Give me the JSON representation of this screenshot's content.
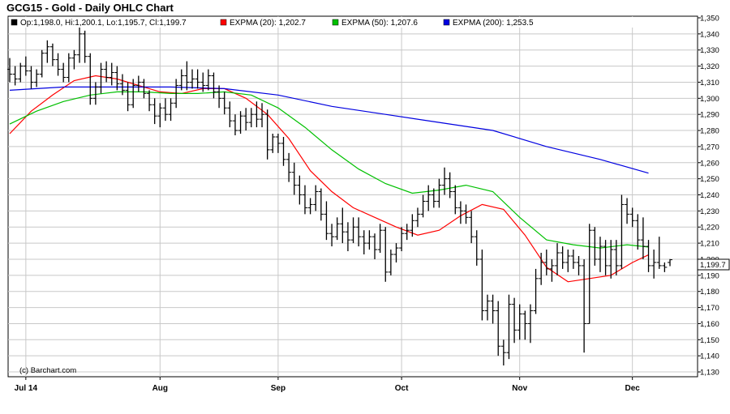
{
  "title": "GCG15 - Gold - Daily OHLC Chart",
  "legend": {
    "ohlc": "Op:1,198.0, Hi:1,200.1, Lo:1,195.7, Cl:1,199.7",
    "ema20": "EXPMA (20): 1,202.7",
    "ema50": "EXPMA (50): 1,207.6",
    "ema200": "EXPMA (200): 1,253.5"
  },
  "credit": "(c) Barchart.com",
  "last_price_label": "1,199.7",
  "colors": {
    "ohlc": "#000000",
    "ema20": "#ff0000",
    "ema50": "#00c000",
    "ema200": "#0000e0",
    "grid": "#c8c8c8",
    "frame": "#000000",
    "legend_bg": "#ffffff"
  },
  "chart_data": {
    "type": "ohlc",
    "title": "GCG15 - Gold - Daily OHLC Chart",
    "x_labels": [
      "Jul 14",
      "Aug",
      "Sep",
      "Oct",
      "Nov",
      "Dec"
    ],
    "y_ticks": [
      1130,
      1140,
      1150,
      1160,
      1170,
      1180,
      1190,
      1200,
      1210,
      1220,
      1230,
      1240,
      1250,
      1260,
      1270,
      1280,
      1290,
      1300,
      1310,
      1320,
      1330,
      1340,
      1350
    ],
    "y_tick_labels": [
      "1,130",
      "1,140",
      "1,150",
      "1,160",
      "1,170",
      "1,180",
      "1,190",
      "1,200",
      "1,210",
      "1,220",
      "1,230",
      "1,240",
      "1,250",
      "1,260",
      "1,270",
      "1,280",
      "1,290",
      "1,300",
      "1,310",
      "1,320",
      "1,330",
      "1,340",
      "1,350"
    ],
    "ylim": [
      1127,
      1351
    ],
    "grid": true,
    "legend_position": "top",
    "series": [
      {
        "name": "GCG15 OHLC",
        "type": "ohlc",
        "values": [
          [
            1318,
            1325,
            1310,
            1315
          ],
          [
            1315,
            1320,
            1308,
            1312
          ],
          [
            1312,
            1322,
            1310,
            1320
          ],
          [
            1320,
            1326,
            1314,
            1317
          ],
          [
            1317,
            1320,
            1306,
            1310
          ],
          [
            1310,
            1318,
            1307,
            1315
          ],
          [
            1315,
            1330,
            1313,
            1328
          ],
          [
            1328,
            1336,
            1322,
            1332
          ],
          [
            1332,
            1334,
            1320,
            1324
          ],
          [
            1324,
            1328,
            1314,
            1318
          ],
          [
            1318,
            1322,
            1310,
            1313
          ],
          [
            1313,
            1328,
            1310,
            1325
          ],
          [
            1325,
            1330,
            1318,
            1327
          ],
          [
            1327,
            1345,
            1322,
            1340
          ],
          [
            1340,
            1342,
            1322,
            1326
          ],
          [
            1326,
            1328,
            1296,
            1300
          ],
          [
            1300,
            1310,
            1296,
            1307
          ],
          [
            1307,
            1322,
            1303,
            1318
          ],
          [
            1318,
            1323,
            1310,
            1313
          ],
          [
            1313,
            1322,
            1308,
            1316
          ],
          [
            1316,
            1320,
            1305,
            1309
          ],
          [
            1309,
            1315,
            1302,
            1305
          ],
          [
            1305,
            1310,
            1292,
            1296
          ],
          [
            1296,
            1312,
            1294,
            1308
          ],
          [
            1308,
            1314,
            1304,
            1310
          ],
          [
            1310,
            1312,
            1300,
            1303
          ],
          [
            1303,
            1305,
            1292,
            1296
          ],
          [
            1296,
            1300,
            1284,
            1289
          ],
          [
            1289,
            1297,
            1282,
            1294
          ],
          [
            1294,
            1300,
            1286,
            1290
          ],
          [
            1290,
            1300,
            1286,
            1297
          ],
          [
            1297,
            1312,
            1294,
            1308
          ],
          [
            1308,
            1318,
            1305,
            1314
          ],
          [
            1314,
            1323,
            1305,
            1310
          ],
          [
            1310,
            1318,
            1306,
            1312
          ],
          [
            1312,
            1318,
            1306,
            1310
          ],
          [
            1310,
            1316,
            1304,
            1308
          ],
          [
            1308,
            1318,
            1305,
            1314
          ],
          [
            1314,
            1316,
            1300,
            1304
          ],
          [
            1304,
            1308,
            1294,
            1300
          ],
          [
            1300,
            1304,
            1290,
            1294
          ],
          [
            1294,
            1298,
            1282,
            1286
          ],
          [
            1286,
            1290,
            1277,
            1280
          ],
          [
            1280,
            1292,
            1278,
            1289
          ],
          [
            1289,
            1294,
            1280,
            1285
          ],
          [
            1285,
            1294,
            1282,
            1290
          ],
          [
            1290,
            1298,
            1282,
            1287
          ],
          [
            1287,
            1297,
            1282,
            1290
          ],
          [
            1290,
            1293,
            1262,
            1268
          ],
          [
            1268,
            1278,
            1266,
            1276
          ],
          [
            1276,
            1278,
            1266,
            1272
          ],
          [
            1272,
            1276,
            1258,
            1262
          ],
          [
            1262,
            1266,
            1248,
            1254
          ],
          [
            1254,
            1260,
            1240,
            1246
          ],
          [
            1246,
            1252,
            1234,
            1240
          ],
          [
            1240,
            1246,
            1228,
            1232
          ],
          [
            1232,
            1238,
            1228,
            1234
          ],
          [
            1234,
            1246,
            1230,
            1242
          ],
          [
            1242,
            1244,
            1224,
            1228
          ],
          [
            1228,
            1236,
            1212,
            1216
          ],
          [
            1216,
            1222,
            1208,
            1214
          ],
          [
            1214,
            1226,
            1212,
            1222
          ],
          [
            1222,
            1232,
            1210,
            1217
          ],
          [
            1217,
            1223,
            1205,
            1212
          ],
          [
            1212,
            1226,
            1210,
            1220
          ],
          [
            1220,
            1226,
            1208,
            1214
          ],
          [
            1214,
            1218,
            1203,
            1210
          ],
          [
            1210,
            1218,
            1206,
            1214
          ],
          [
            1214,
            1216,
            1200,
            1206
          ],
          [
            1206,
            1222,
            1204,
            1218
          ],
          [
            1218,
            1220,
            1186,
            1192
          ],
          [
            1192,
            1206,
            1190,
            1203
          ],
          [
            1203,
            1210,
            1198,
            1207
          ],
          [
            1207,
            1220,
            1205,
            1216
          ],
          [
            1216,
            1222,
            1212,
            1218
          ],
          [
            1218,
            1228,
            1214,
            1224
          ],
          [
            1224,
            1232,
            1220,
            1228
          ],
          [
            1228,
            1240,
            1226,
            1236
          ],
          [
            1236,
            1246,
            1230,
            1240
          ],
          [
            1240,
            1244,
            1232,
            1236
          ],
          [
            1236,
            1250,
            1232,
            1246
          ],
          [
            1246,
            1257,
            1240,
            1250
          ],
          [
            1250,
            1254,
            1238,
            1242
          ],
          [
            1242,
            1246,
            1228,
            1232
          ],
          [
            1232,
            1236,
            1222,
            1230
          ],
          [
            1230,
            1234,
            1222,
            1226
          ],
          [
            1226,
            1230,
            1210,
            1214
          ],
          [
            1214,
            1218,
            1196,
            1200
          ],
          [
            1200,
            1206,
            1162,
            1168
          ],
          [
            1168,
            1178,
            1162,
            1174
          ],
          [
            1174,
            1178,
            1160,
            1168
          ],
          [
            1168,
            1174,
            1140,
            1146
          ],
          [
            1146,
            1150,
            1134,
            1142
          ],
          [
            1142,
            1178,
            1138,
            1172
          ],
          [
            1172,
            1176,
            1148,
            1156
          ],
          [
            1156,
            1172,
            1150,
            1166
          ],
          [
            1166,
            1168,
            1150,
            1160
          ],
          [
            1160,
            1172,
            1148,
            1168
          ],
          [
            1168,
            1194,
            1166,
            1188
          ],
          [
            1188,
            1204,
            1184,
            1198
          ],
          [
            1198,
            1206,
            1190,
            1194
          ],
          [
            1194,
            1200,
            1186,
            1196
          ],
          [
            1196,
            1210,
            1190,
            1204
          ],
          [
            1204,
            1208,
            1194,
            1198
          ],
          [
            1198,
            1206,
            1192,
            1202
          ],
          [
            1202,
            1206,
            1194,
            1198
          ],
          [
            1198,
            1202,
            1190,
            1196
          ],
          [
            1196,
            1200,
            1142,
            1160
          ],
          [
            1160,
            1222,
            1160,
            1218
          ],
          [
            1218,
            1220,
            1196,
            1200
          ],
          [
            1200,
            1214,
            1192,
            1208
          ],
          [
            1208,
            1212,
            1190,
            1196
          ],
          [
            1196,
            1212,
            1188,
            1206
          ],
          [
            1206,
            1212,
            1190,
            1196
          ],
          [
            1196,
            1240,
            1194,
            1234
          ],
          [
            1234,
            1238,
            1222,
            1228
          ],
          [
            1228,
            1232,
            1220,
            1224
          ],
          [
            1224,
            1228,
            1206,
            1212
          ],
          [
            1212,
            1226,
            1200,
            1208
          ],
          [
            1208,
            1212,
            1192,
            1196
          ],
          [
            1196,
            1206,
            1188,
            1198
          ],
          [
            1198,
            1214,
            1194,
            1196
          ],
          [
            1196,
            1198,
            1192,
            1195
          ],
          [
            1198,
            1200.1,
            1195.7,
            1199.7
          ]
        ]
      },
      {
        "name": "EXPMA (20)",
        "type": "line",
        "x": [
          0,
          4,
          8,
          12,
          16,
          20,
          24,
          28,
          32,
          36,
          40,
          44,
          48,
          52,
          56,
          60,
          64,
          68,
          72,
          76,
          80,
          84,
          88,
          92,
          96,
          100,
          104,
          108,
          112,
          116,
          119
        ],
        "values": [
          1278,
          1292,
          1302,
          1311,
          1314,
          1312,
          1308,
          1304,
          1303,
          1306,
          1306,
          1300,
          1290,
          1275,
          1255,
          1242,
          1232,
          1226,
          1220,
          1215,
          1218,
          1227,
          1234,
          1231,
          1215,
          1195,
          1186,
          1188,
          1190,
          1198,
          1202.7
        ]
      },
      {
        "name": "EXPMA (50)",
        "type": "line",
        "x": [
          0,
          5,
          10,
          15,
          20,
          25,
          30,
          35,
          40,
          45,
          50,
          55,
          60,
          65,
          70,
          75,
          80,
          85,
          90,
          95,
          100,
          105,
          110,
          115,
          119
        ],
        "values": [
          1284,
          1292,
          1298,
          1302,
          1304,
          1304,
          1303,
          1303,
          1304,
          1302,
          1294,
          1282,
          1268,
          1256,
          1247,
          1241,
          1243,
          1246,
          1242,
          1226,
          1212,
          1209,
          1207,
          1209,
          1207.6
        ]
      },
      {
        "name": "EXPMA (200)",
        "type": "line",
        "x": [
          0,
          10,
          20,
          30,
          40,
          50,
          60,
          70,
          80,
          90,
          100,
          110,
          119
        ],
        "values": [
          1305,
          1307,
          1307,
          1307,
          1306,
          1302,
          1295,
          1290,
          1285,
          1280,
          1270,
          1262,
          1253.5
        ]
      }
    ]
  }
}
